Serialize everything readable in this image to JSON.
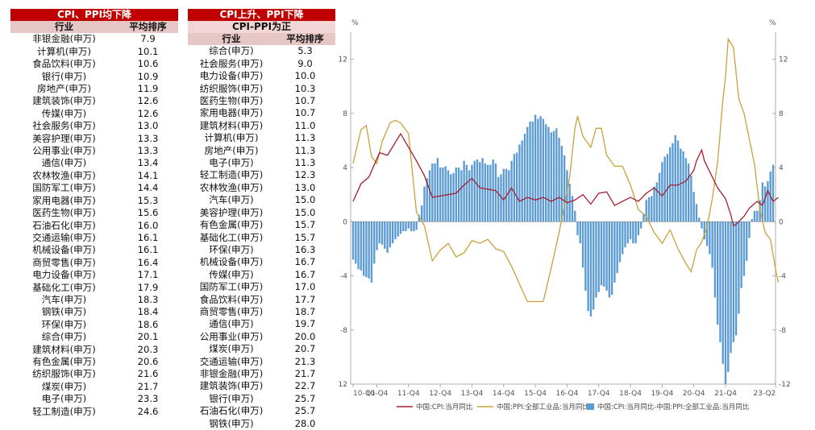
{
  "table1": {
    "title": "CPI、PPI均下降",
    "col_industry": "行业",
    "col_rank": "平均排序",
    "rows": [
      [
        "非银金融(申万)",
        "7.9"
      ],
      [
        "计算机(申万)",
        "10.1"
      ],
      [
        "食品饮料(申万)",
        "10.6"
      ],
      [
        "银行(申万)",
        "10.9"
      ],
      [
        "房地产(申万)",
        "11.9"
      ],
      [
        "建筑装饰(申万)",
        "12.6"
      ],
      [
        "传媒(申万)",
        "12.6"
      ],
      [
        "社会服务(申万)",
        "13.0"
      ],
      [
        "美容护理(申万)",
        "13.3"
      ],
      [
        "公用事业(申万)",
        "13.3"
      ],
      [
        "通信(申万)",
        "13.4"
      ],
      [
        "农林牧渔(申万)",
        "14.1"
      ],
      [
        "国防军工(申万)",
        "14.4"
      ],
      [
        "家用电器(申万)",
        "15.3"
      ],
      [
        "医药生物(申万)",
        "15.6"
      ],
      [
        "石油石化(申万)",
        "16.0"
      ],
      [
        "交通运输(申万)",
        "16.1"
      ],
      [
        "机械设备(申万)",
        "16.1"
      ],
      [
        "商贸零售(申万)",
        "16.4"
      ],
      [
        "电力设备(申万)",
        "17.1"
      ],
      [
        "基础化工(申万)",
        "17.9"
      ],
      [
        "汽车(申万)",
        "18.3"
      ],
      [
        "钢铁(申万)",
        "18.4"
      ],
      [
        "环保(申万)",
        "18.6"
      ],
      [
        "综合(申万)",
        "20.1"
      ],
      [
        "建筑材料(申万)",
        "20.3"
      ],
      [
        "有色金属(申万)",
        "20.6"
      ],
      [
        "纺织服饰(申万)",
        "21.6"
      ],
      [
        "煤炭(申万)",
        "21.7"
      ],
      [
        "电子(申万)",
        "23.3"
      ],
      [
        "轻工制造(申万)",
        "24.6"
      ]
    ]
  },
  "table2": {
    "title": "CPI上升、PPI下降",
    "subtitle": "CPI-PPI为正",
    "col_industry": "行业",
    "col_rank": "平均排序",
    "rows": [
      [
        "综合(申万)",
        "5.3"
      ],
      [
        "社会服务(申万)",
        "9.0"
      ],
      [
        "电力设备(申万)",
        "10.0"
      ],
      [
        "纺织服饰(申万)",
        "10.3"
      ],
      [
        "医药生物(申万)",
        "10.7"
      ],
      [
        "家用电器(申万)",
        "10.7"
      ],
      [
        "建筑材料(申万)",
        "11.0"
      ],
      [
        "计算机(申万)",
        "11.3"
      ],
      [
        "房地产(申万)",
        "11.3"
      ],
      [
        "电子(申万)",
        "11.3"
      ],
      [
        "轻工制造(申万)",
        "12.3"
      ],
      [
        "农林牧渔(申万)",
        "13.0"
      ],
      [
        "汽车(申万)",
        "15.0"
      ],
      [
        "美容护理(申万)",
        "15.0"
      ],
      [
        "有色金属(申万)",
        "15.7"
      ],
      [
        "基础化工(申万)",
        "15.7"
      ],
      [
        "环保(申万)",
        "16.3"
      ],
      [
        "机械设备(申万)",
        "16.7"
      ],
      [
        "传媒(申万)",
        "16.7"
      ],
      [
        "国防军工(申万)",
        "17.0"
      ],
      [
        "食品饮料(申万)",
        "17.7"
      ],
      [
        "商贸零售(申万)",
        "18.7"
      ],
      [
        "通信(申万)",
        "19.7"
      ],
      [
        "公用事业(申万)",
        "20.0"
      ],
      [
        "煤炭(申万)",
        "20.7"
      ],
      [
        "交通运输(申万)",
        "21.3"
      ],
      [
        "非银金融(申万)",
        "21.7"
      ],
      [
        "建筑装饰(申万)",
        "22.7"
      ],
      [
        "银行(申万)",
        "25.7"
      ],
      [
        "石油石化(申万)",
        "25.7"
      ],
      [
        "钢铁(申万)",
        "28.0"
      ]
    ]
  },
  "chart_data": {
    "type": "line+bar",
    "unit_left": "%",
    "unit_right": "%",
    "ylim": [
      -12,
      14
    ],
    "yticks": [
      -12,
      -8,
      -4,
      0,
      4,
      8,
      12
    ],
    "xticks": [
      "10-Q1",
      "10-Q4",
      "11-Q4",
      "12-Q4",
      "13-Q4",
      "14-Q4",
      "15-Q4",
      "16-Q4",
      "17-Q4",
      "18-Q4",
      "19-Q4",
      "20-Q4",
      "21-Q4",
      "23-Q2"
    ],
    "colors": {
      "cpi": "#a31f34",
      "ppi": "#c9a13c",
      "diff": "#5b9bd5"
    },
    "legend": [
      "中国:CPI:当月同比",
      "中国:PPI:全部工业品:当月同比",
      "中国:CPI:当月同比-中国:PPI:全部工业品:当月同比"
    ],
    "grid": false,
    "monthly_anchors_start": "2010-01",
    "cpi": [
      [
        0,
        1.5
      ],
      [
        3,
        2.8
      ],
      [
        6,
        3.3
      ],
      [
        10,
        5.1
      ],
      [
        13,
        4.9
      ],
      [
        18,
        6.5
      ],
      [
        21,
        5.5
      ],
      [
        24,
        4.5
      ],
      [
        27,
        3.4
      ],
      [
        30,
        1.8
      ],
      [
        33,
        1.9
      ],
      [
        36,
        2.0
      ],
      [
        39,
        2.1
      ],
      [
        42,
        2.7
      ],
      [
        45,
        3.2
      ],
      [
        48,
        2.5
      ],
      [
        51,
        2.4
      ],
      [
        54,
        2.3
      ],
      [
        57,
        1.6
      ],
      [
        60,
        2.5
      ],
      [
        63,
        1.5
      ],
      [
        66,
        1.8
      ],
      [
        69,
        1.6
      ],
      [
        72,
        1.8
      ],
      [
        75,
        1.5
      ],
      [
        78,
        1.8
      ],
      [
        81,
        1.4
      ],
      [
        84,
        1.6
      ],
      [
        87,
        2.0
      ],
      [
        90,
        1.3
      ],
      [
        93,
        2.1
      ],
      [
        96,
        2.2
      ],
      [
        99,
        1.2
      ],
      [
        102,
        1.5
      ],
      [
        105,
        1.8
      ],
      [
        108,
        1.5
      ],
      [
        111,
        2.1
      ],
      [
        114,
        2.5
      ],
      [
        117,
        1.9
      ],
      [
        120,
        2.7
      ],
      [
        123,
        2.7
      ],
      [
        126,
        3.0
      ],
      [
        129,
        3.8
      ],
      [
        130,
        4.5
      ],
      [
        132,
        5.3
      ],
      [
        133,
        4.5
      ],
      [
        136,
        3.3
      ],
      [
        138,
        2.5
      ],
      [
        141,
        1.7
      ],
      [
        143,
        0.5
      ],
      [
        144,
        -0.3
      ],
      [
        145,
        -0.2
      ],
      [
        148,
        0.4
      ],
      [
        150,
        1.0
      ],
      [
        153,
        1.5
      ],
      [
        155,
        1.2
      ],
      [
        157,
        2.3
      ],
      [
        159,
        1.5
      ],
      [
        161,
        1.8
      ],
      [
        144,
        -0.3
      ]
    ],
    "ppi": [
      [
        0,
        4.3
      ],
      [
        3,
        6.8
      ],
      [
        5,
        7.1
      ],
      [
        7,
        4.8
      ],
      [
        9,
        4.3
      ],
      [
        11,
        5.9
      ],
      [
        14,
        7.3
      ],
      [
        16,
        7.5
      ],
      [
        18,
        7.3
      ],
      [
        21,
        6.5
      ],
      [
        24,
        0.7
      ],
      [
        27,
        -0.3
      ],
      [
        30,
        -2.9
      ],
      [
        33,
        -2.1
      ],
      [
        36,
        -1.6
      ],
      [
        39,
        -2.6
      ],
      [
        42,
        -2.3
      ],
      [
        45,
        -1.4
      ],
      [
        48,
        -1.6
      ],
      [
        51,
        -1.3
      ],
      [
        54,
        -2.0
      ],
      [
        57,
        -2.2
      ],
      [
        60,
        -3.3
      ],
      [
        63,
        -4.6
      ],
      [
        66,
        -5.9
      ],
      [
        69,
        -5.9
      ],
      [
        72,
        -5.9
      ],
      [
        75,
        -3.4
      ],
      [
        78,
        -0.8
      ],
      [
        80,
        1.2
      ],
      [
        82,
        3.3
      ],
      [
        84,
        6.9
      ],
      [
        85,
        7.8
      ],
      [
        87,
        6.3
      ],
      [
        90,
        5.5
      ],
      [
        92,
        6.9
      ],
      [
        94,
        6.9
      ],
      [
        96,
        4.9
      ],
      [
        99,
        4.1
      ],
      [
        102,
        4.1
      ],
      [
        105,
        2.7
      ],
      [
        108,
        0.9
      ],
      [
        111,
        0.4
      ],
      [
        114,
        -0.8
      ],
      [
        117,
        -1.6
      ],
      [
        120,
        -0.6
      ],
      [
        123,
        -2.0
      ],
      [
        126,
        -3.1
      ],
      [
        128,
        -3.7
      ],
      [
        130,
        -2.1
      ],
      [
        132,
        -1.5
      ],
      [
        134,
        -0.4
      ],
      [
        136,
        1.7
      ],
      [
        138,
        4.4
      ],
      [
        140,
        9.0
      ],
      [
        141,
        10.7
      ],
      [
        142,
        13.5
      ],
      [
        144,
        12.9
      ],
      [
        146,
        9.1
      ],
      [
        148,
        8.0
      ],
      [
        150,
        6.1
      ],
      [
        152,
        4.2
      ],
      [
        154,
        0.9
      ],
      [
        156,
        -0.8
      ],
      [
        158,
        -1.3
      ],
      [
        160,
        -3.6
      ],
      [
        161,
        -4.5
      ]
    ],
    "diff_bars": [
      -2.8,
      -3.1,
      -3.5,
      -3.6,
      -4.0,
      -4.1,
      -4.2,
      -4.5,
      -3.1,
      -2.1,
      -1.6,
      -1.7,
      -2.0,
      -2.3,
      -1.9,
      -1.6,
      -1.3,
      -1.1,
      -0.9,
      -0.7,
      -0.7,
      -0.5,
      -0.7,
      -0.7,
      -0.6,
      0.5,
      1.2,
      2.6,
      3.2,
      3.8,
      4.3,
      4.3,
      4.7,
      4.0,
      4.0,
      4.1,
      3.8,
      3.5,
      3.6,
      4.0,
      4.0,
      3.8,
      4.5,
      4.2,
      3.8,
      4.2,
      4.5,
      4.6,
      4.4,
      4.7,
      4.3,
      4.2,
      4.2,
      4.6,
      4.3,
      3.3,
      3.5,
      3.9,
      3.9,
      3.8,
      4.5,
      5.0,
      5.1,
      5.7,
      6.0,
      6.5,
      7.0,
      7.4,
      7.4,
      7.9,
      7.6,
      7.8,
      7.6,
      7.2,
      7.0,
      6.6,
      6.7,
      6.9,
      6.2,
      5.6,
      4.9,
      3.8,
      2.8,
      1.9,
      0.8,
      -1.0,
      -1.6,
      -3.4,
      -5.1,
      -6.6,
      -7.0,
      -6.5,
      -5.6,
      -5.2,
      -4.7,
      -4.8,
      -5.1,
      -5.6,
      -5.4,
      -4.5,
      -3.8,
      -3.0,
      -2.4,
      -1.9,
      -1.6,
      -1.3,
      -1.6,
      -1.6,
      -1.0,
      -0.5,
      0.6,
      1.6,
      1.8,
      1.9,
      2.6,
      2.9,
      3.6,
      4.4,
      4.8,
      5.0,
      5.5,
      5.8,
      6.4,
      6.0,
      5.4,
      5.2,
      4.7,
      4.3,
      3.4,
      2.2,
      1.3,
      0.3,
      -0.5,
      -1.3,
      -1.8,
      -2.4,
      -3.4,
      -5.6,
      -7.6,
      -8.9,
      -10.5,
      -12.0,
      -11.1,
      -9.7,
      -8.9,
      -8.4,
      -6.8,
      -4.9,
      -4.0,
      -2.9,
      -1.2,
      0.2,
      0.8,
      0.8,
      1.6,
      2.9,
      2.6,
      3.0,
      3.7,
      4.2
    ]
  }
}
